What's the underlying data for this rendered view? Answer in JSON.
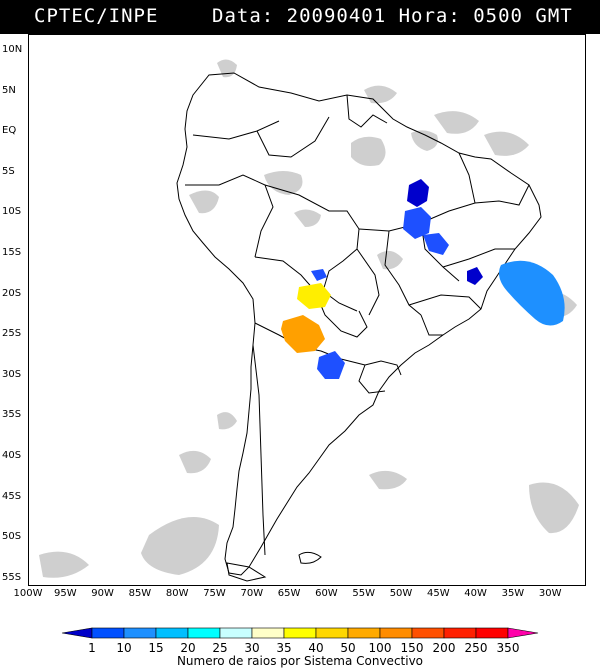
{
  "header": {
    "agency": "CPTEC/INPE",
    "datetime": "Data: 20090401 Hora: 0500 GMT"
  },
  "map": {
    "lat_labels": [
      "10N",
      "5N",
      "EQ",
      "5S",
      "10S",
      "15S",
      "20S",
      "25S",
      "30S",
      "35S",
      "40S",
      "45S",
      "50S",
      "55S"
    ],
    "lon_labels": [
      "100W",
      "95W",
      "90W",
      "85W",
      "80W",
      "75W",
      "70W",
      "65W",
      "60W",
      "55W",
      "50W",
      "45W",
      "40W",
      "35W",
      "30W"
    ]
  },
  "colors": {
    "cloud": "#c8c8c8",
    "coast": "#000000",
    "storm_dark_blue": "#0000cc",
    "storm_blue": "#1e50ff",
    "storm_light_blue": "#1e90ff",
    "storm_yellow": "#ffee00",
    "storm_orange": "#ffa000"
  },
  "legend": {
    "caption": "Numero de raios por Sistema Convectivo",
    "values": [
      "1",
      "10",
      "15",
      "20",
      "25",
      "30",
      "35",
      "40",
      "50",
      "100",
      "150",
      "200",
      "250",
      "350"
    ],
    "colors": [
      "#0000c8",
      "#0050ff",
      "#1e90ff",
      "#00bfff",
      "#00ffff",
      "#c8ffff",
      "#ffffc8",
      "#ffff00",
      "#ffd700",
      "#ffaa00",
      "#ff8c00",
      "#ff5000",
      "#ff2000",
      "#ff0000",
      "#ff00aa"
    ]
  }
}
